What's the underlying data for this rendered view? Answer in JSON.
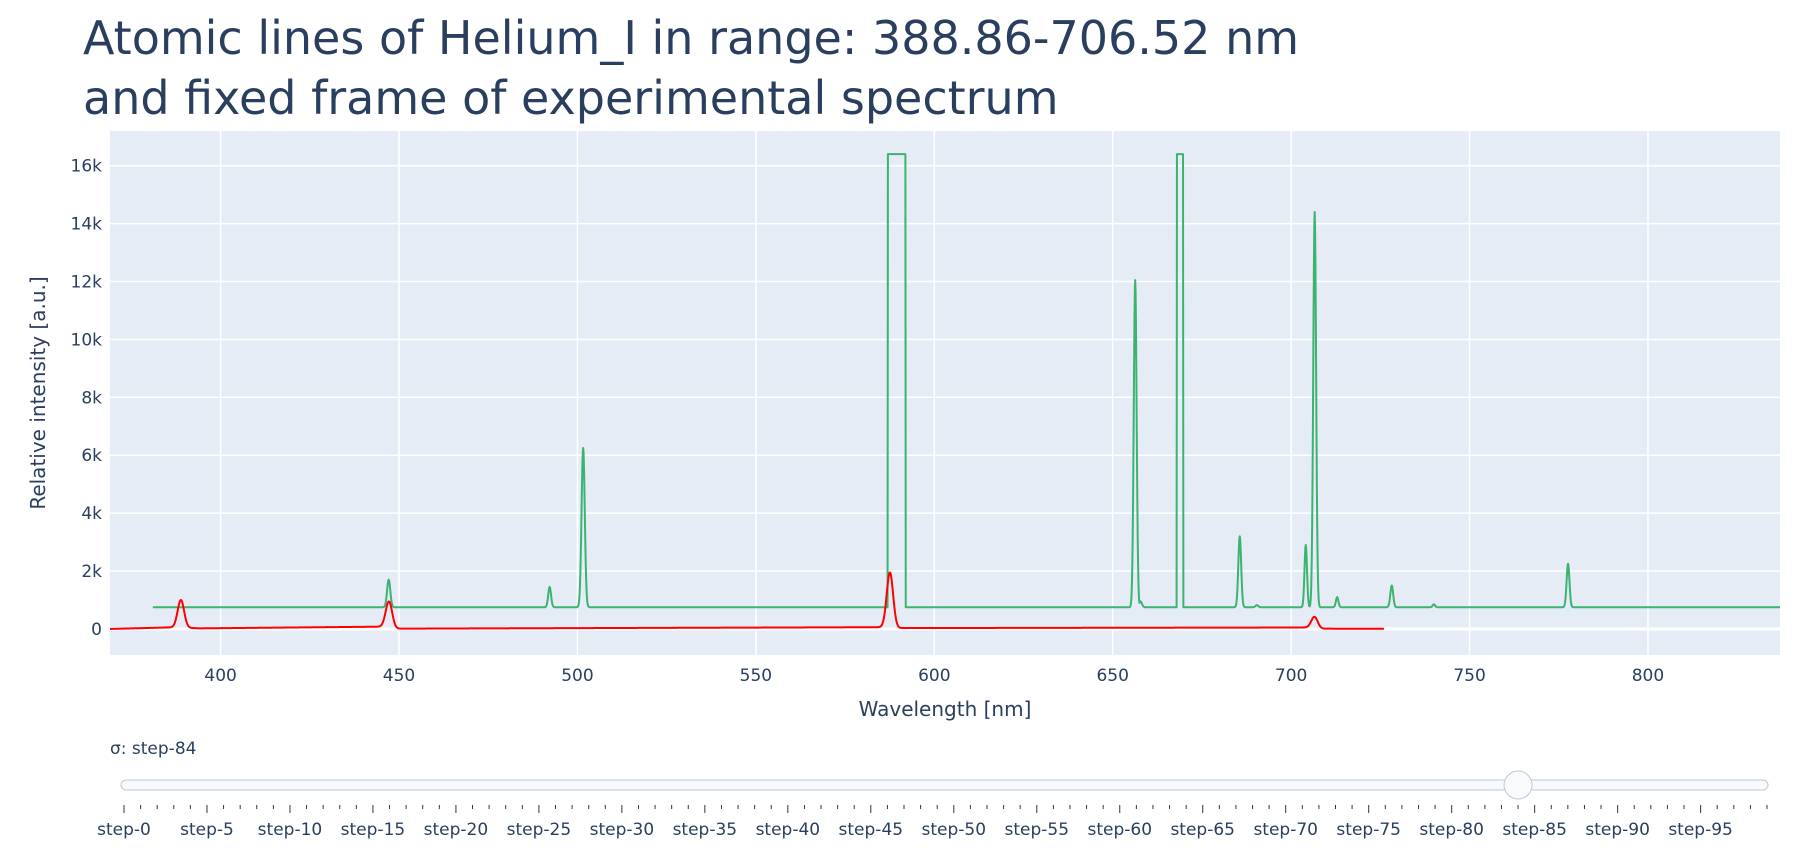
{
  "chart_data": {
    "type": "line",
    "title_lines": [
      "Atomic lines of Helium_I in range: 388.86-706.52 nm",
      "and fixed frame of experimental spectrum"
    ],
    "xlabel": "Wavelength [nm]",
    "ylabel": "Relative intensity [a.u.]",
    "xlim": [
      369,
      837
    ],
    "ylim": [
      -900,
      17200
    ],
    "x_ticks": [
      400,
      450,
      500,
      550,
      600,
      650,
      700,
      750,
      800
    ],
    "y_ticks": [
      0,
      2000,
      4000,
      6000,
      8000,
      10000,
      12000,
      14000,
      16000
    ],
    "y_tick_labels": [
      "0",
      "2k",
      "4k",
      "6k",
      "8k",
      "10k",
      "12k",
      "14k",
      "16k"
    ],
    "grid": true,
    "background": "#e5ecf6",
    "series": [
      {
        "color": "#3cb371",
        "baseline": 750,
        "x_range": [
          381,
          837
        ],
        "peaks": [
          {
            "x": 447.1,
            "y": 1700,
            "w": 0.45
          },
          {
            "x": 492.2,
            "y": 1450,
            "w": 0.4
          },
          {
            "x": 501.6,
            "y": 6250,
            "w": 0.45
          },
          {
            "x": 656.3,
            "y": 12050,
            "w": 0.4
          },
          {
            "x": 657.8,
            "y": 950,
            "w": 0.4
          },
          {
            "x": 685.6,
            "y": 3200,
            "w": 0.4
          },
          {
            "x": 690.4,
            "y": 820,
            "w": 0.4
          },
          {
            "x": 704.1,
            "y": 2900,
            "w": 0.35
          },
          {
            "x": 706.6,
            "y": 14400,
            "w": 0.4
          },
          {
            "x": 712.9,
            "y": 1100,
            "w": 0.35
          },
          {
            "x": 728.2,
            "y": 1500,
            "w": 0.4
          },
          {
            "x": 740.0,
            "y": 850,
            "w": 0.35
          },
          {
            "x": 777.6,
            "y": 2250,
            "w": 0.4
          }
        ],
        "saturated_bands": [
          {
            "x0": 587.0,
            "x1": 592.0,
            "y": 16400
          },
          {
            "x0": 668.0,
            "x1": 669.8,
            "y": 16400
          }
        ]
      },
      {
        "color": "#ff0000",
        "baseline": 0,
        "x_range": [
          369,
          726
        ],
        "baseline_points": [
          [
            369,
            0
          ],
          [
            388,
            60
          ],
          [
            394,
            20
          ],
          [
            446,
            80
          ],
          [
            449,
            10
          ],
          [
            585,
            60
          ],
          [
            589,
            30
          ],
          [
            705,
            50
          ],
          [
            708,
            10
          ],
          [
            726,
            5
          ]
        ],
        "peaks": [
          {
            "x": 388.86,
            "y": 1000,
            "w": 0.9
          },
          {
            "x": 447.15,
            "y": 950,
            "w": 0.9
          },
          {
            "x": 587.56,
            "y": 1950,
            "w": 0.9
          },
          {
            "x": 706.52,
            "y": 420,
            "w": 0.9
          }
        ]
      }
    ]
  },
  "slider": {
    "label": "σ: step-84",
    "active_step": 84,
    "steps_count": 100,
    "tick_label_every": 5,
    "tick_labels": [
      "step-0",
      "step-5",
      "step-10",
      "step-15",
      "step-20",
      "step-25",
      "step-30",
      "step-35",
      "step-40",
      "step-45",
      "step-50",
      "step-55",
      "step-60",
      "step-65",
      "step-70",
      "step-75",
      "step-80",
      "step-85",
      "step-90",
      "step-95"
    ]
  }
}
